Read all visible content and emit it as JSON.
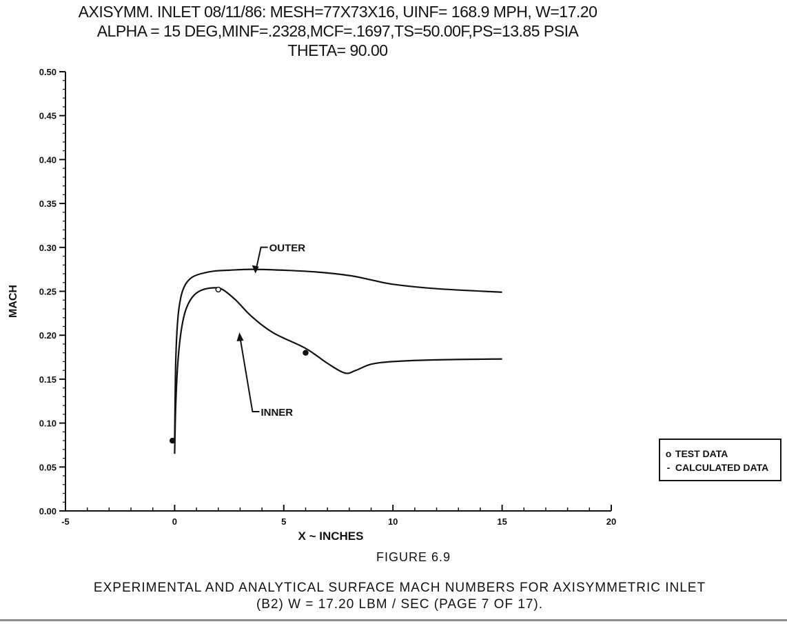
{
  "chart_data": {
    "type": "line",
    "title_lines": [
      "AXISYMM. INLET 08/11/86: MESH=77X73X16, UINF= 168.9 MPH, W=17.20",
      "ALPHA = 15 DEG,MINF=.2328,MCF=.1697,TS=50.00F,PS=13.85 PSIA",
      "THETA=  90.00"
    ],
    "xlabel": "X ~ INCHES",
    "ylabel": "MACH",
    "xlim": [
      -5,
      20
    ],
    "ylim": [
      0.0,
      0.5
    ],
    "x_tick_labels": [
      "-5",
      "0",
      "5",
      "10",
      "15",
      "20"
    ],
    "y_tick_labels": [
      "0.00",
      "0.05",
      "0.10",
      "0.15",
      "0.20",
      "0.25",
      "0.30",
      "0.35",
      "0.40",
      "0.45",
      "0.50"
    ],
    "x_ticks": [
      -5,
      0,
      5,
      10,
      15,
      20
    ],
    "y_ticks": [
      0.0,
      0.05,
      0.1,
      0.15,
      0.2,
      0.25,
      0.3,
      0.35,
      0.4,
      0.45,
      0.5
    ],
    "series": [
      {
        "curve_label": "OUTER",
        "kind": "calculated",
        "x": [
          0.0,
          0.05,
          0.15,
          0.3,
          0.5,
          0.8,
          1.2,
          1.8,
          2.5,
          3.5,
          5.0,
          6.5,
          8.0,
          9.0,
          10.0,
          12.0,
          15.0
        ],
        "y": [
          0.08,
          0.17,
          0.22,
          0.245,
          0.258,
          0.266,
          0.27,
          0.273,
          0.274,
          0.275,
          0.274,
          0.272,
          0.268,
          0.263,
          0.258,
          0.253,
          0.249
        ]
      },
      {
        "curve_label": "INNER",
        "kind": "calculated",
        "x": [
          0.0,
          0.05,
          0.15,
          0.3,
          0.5,
          0.8,
          1.2,
          1.8,
          2.2,
          2.8,
          3.5,
          4.5,
          6.0,
          7.0,
          7.8,
          8.3,
          9.0,
          10.0,
          12.0,
          15.0
        ],
        "y": [
          0.065,
          0.12,
          0.17,
          0.205,
          0.228,
          0.243,
          0.251,
          0.254,
          0.252,
          0.24,
          0.222,
          0.203,
          0.185,
          0.168,
          0.157,
          0.16,
          0.167,
          0.17,
          0.172,
          0.173
        ]
      },
      {
        "kind": "test",
        "x": [
          -0.1,
          2.0,
          6.0
        ],
        "y": [
          0.08,
          0.252,
          0.18
        ]
      }
    ],
    "annotations": [
      {
        "text": "OUTER",
        "target": [
          3.7,
          0.275
        ]
      },
      {
        "text": "INNER",
        "target": [
          3.0,
          0.197
        ]
      }
    ],
    "legend": {
      "placement": "bottom-right, outside plot",
      "entries": [
        {
          "marker": "o",
          "label": "TEST DATA"
        },
        {
          "marker": "-",
          "label": "CALCULATED DATA"
        }
      ]
    },
    "grid": false
  },
  "figure_label": "FIGURE 6.9",
  "caption_lines": [
    "EXPERIMENTAL AND ANALYTICAL SURFACE MACH NUMBERS FOR AXISYMMETRIC INLET",
    "(B2)  W =  17.20  LBM / SEC   (PAGE 7 OF 17)."
  ],
  "colors": {
    "ink": "#111111",
    "background": "#ffffff"
  }
}
